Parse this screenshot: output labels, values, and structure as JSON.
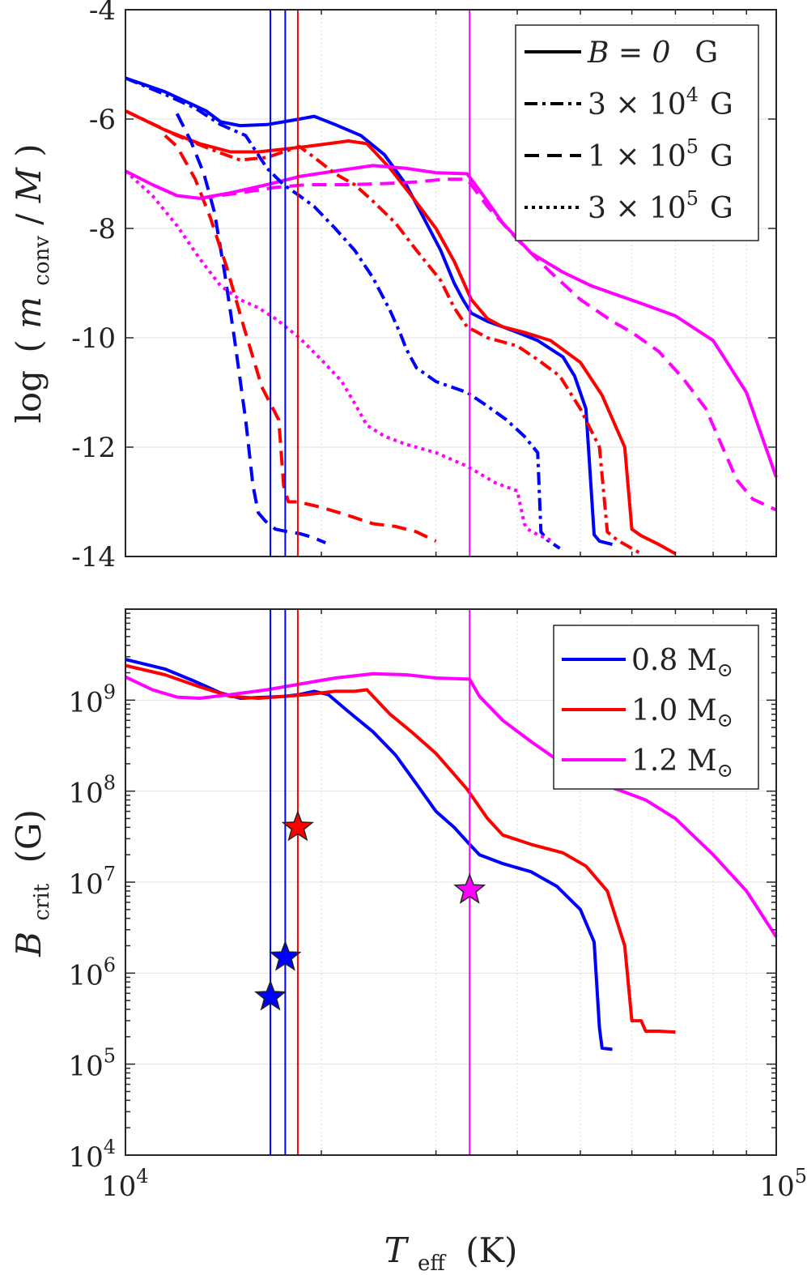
{
  "chart_data": [
    {
      "type": "line",
      "panel": "top",
      "xlabel": "T_eff (K)",
      "ylabel": "log (m_conv / M)",
      "xscale": "log",
      "xlim": [
        10000,
        100000
      ],
      "ylim": [
        -14,
        -4
      ],
      "yticks": [
        -14,
        -12,
        -10,
        -8,
        -6,
        -4
      ],
      "ytick_labels": [
        "-14",
        "-12",
        "-10",
        "-8",
        "-6",
        "-4"
      ],
      "grid": true,
      "legend_position": "top-right",
      "legend": [
        {
          "style": "solid",
          "label_main": "B = 0",
          "label_unit": "G"
        },
        {
          "style": "dashdot",
          "label_main": "3 × 10",
          "label_exp": "4",
          "label_unit": "G"
        },
        {
          "style": "dashed",
          "label_main": "1 × 10",
          "label_exp": "5",
          "label_unit": "G"
        },
        {
          "style": "dotted",
          "label_main": "3 × 10",
          "label_exp": "5",
          "label_unit": "G"
        }
      ],
      "series": [
        {
          "mass": "0.8",
          "field": "0",
          "style": "solid",
          "color": "#0000ff",
          "x": [
            10000,
            11500,
            12500,
            13300,
            14000,
            15000,
            16500,
            17500,
            18500,
            19500,
            21000,
            23000,
            25000,
            27000,
            29000,
            30500,
            32000,
            33000,
            34000,
            36000,
            38000,
            40000,
            43000,
            47000,
            49000,
            51000,
            52500,
            53500,
            56000
          ],
          "y": [
            -5.25,
            -5.5,
            -5.7,
            -5.85,
            -6.05,
            -6.12,
            -6.1,
            -6.05,
            -6.0,
            -5.95,
            -6.1,
            -6.3,
            -6.65,
            -7.2,
            -7.9,
            -8.4,
            -9.0,
            -9.3,
            -9.55,
            -9.7,
            -9.8,
            -9.9,
            -10.05,
            -10.35,
            -10.7,
            -11.3,
            -13.6,
            -13.72,
            -13.78
          ]
        },
        {
          "mass": "1.0",
          "field": "0",
          "style": "solid",
          "color": "#ff0000",
          "x": [
            10000,
            11500,
            13000,
            14500,
            16000,
            17500,
            19000,
            20500,
            22000,
            23500,
            25500,
            27500,
            30000,
            32000,
            34000,
            36000,
            38000,
            41000,
            45000,
            50000,
            54000,
            58500,
            60000,
            62000,
            66000,
            70000
          ],
          "y": [
            -5.85,
            -6.2,
            -6.45,
            -6.6,
            -6.6,
            -6.55,
            -6.5,
            -6.45,
            -6.4,
            -6.45,
            -6.9,
            -7.4,
            -8.0,
            -8.6,
            -9.3,
            -9.65,
            -9.8,
            -9.9,
            -10.05,
            -10.45,
            -11.05,
            -12.0,
            -13.5,
            -13.62,
            -13.78,
            -13.95
          ]
        },
        {
          "mass": "1.2",
          "field": "0",
          "style": "solid",
          "color": "#ff00ff",
          "x": [
            10000,
            11000,
            12000,
            13000,
            14500,
            16500,
            18500,
            21000,
            24000,
            27000,
            30000,
            33500,
            35000,
            38000,
            42000,
            47000,
            52000,
            58000,
            63000,
            70000,
            80000,
            90000,
            100000
          ],
          "y": [
            -6.95,
            -7.2,
            -7.4,
            -7.45,
            -7.35,
            -7.2,
            -7.05,
            -6.95,
            -6.85,
            -6.9,
            -6.98,
            -7.0,
            -7.3,
            -7.9,
            -8.45,
            -8.8,
            -9.05,
            -9.25,
            -9.4,
            -9.6,
            -10.05,
            -11.0,
            -12.55
          ]
        },
        {
          "mass": "0.8",
          "field": "3e4",
          "style": "dashdot",
          "color": "#0000ff",
          "x": [
            10000,
            11500,
            12800,
            14000,
            15300,
            16500,
            17500,
            18500,
            19500,
            21000,
            22500,
            24000,
            25500,
            26500,
            27000,
            28000,
            30000,
            33500,
            36000,
            38500,
            41000,
            43000,
            43500,
            44500,
            46500
          ],
          "y": [
            -5.25,
            -5.55,
            -5.8,
            -6.1,
            -6.3,
            -6.9,
            -7.2,
            -7.4,
            -7.6,
            -8.0,
            -8.4,
            -8.9,
            -9.5,
            -9.95,
            -10.2,
            -10.55,
            -10.8,
            -11.0,
            -11.25,
            -11.5,
            -11.8,
            -12.1,
            -13.55,
            -13.7,
            -13.85
          ]
        },
        {
          "mass": "1.0",
          "field": "3e4",
          "style": "dashdot",
          "color": "#ff0000",
          "x": [
            10000,
            12000,
            13500,
            15000,
            16500,
            17500,
            18500,
            19500,
            21000,
            22500,
            24000,
            26000,
            28000,
            30500,
            32000,
            33500,
            36000,
            40000,
            43000,
            46500,
            50000,
            53500,
            55000,
            57000,
            62000
          ],
          "y": [
            -5.85,
            -6.3,
            -6.55,
            -6.75,
            -6.7,
            -6.6,
            -6.5,
            -6.7,
            -7.0,
            -7.2,
            -7.5,
            -7.9,
            -8.4,
            -8.95,
            -9.45,
            -9.8,
            -10.0,
            -10.15,
            -10.4,
            -10.7,
            -11.3,
            -12.0,
            -13.55,
            -13.7,
            -13.95
          ]
        },
        {
          "mass": "0.8",
          "field": "1e5",
          "style": "dashed",
          "color": "#0000ff",
          "x": [
            12000,
            12600,
            13200,
            13700,
            14200,
            14700,
            15300,
            15700,
            16000,
            16400,
            17000,
            17800,
            18500,
            19400,
            20300
          ],
          "y": [
            -5.9,
            -6.4,
            -7.0,
            -7.7,
            -8.8,
            -10.0,
            -11.5,
            -12.7,
            -13.2,
            -13.35,
            -13.5,
            -13.55,
            -13.58,
            -13.65,
            -13.75
          ]
        },
        {
          "mass": "1.0",
          "field": "1e5",
          "style": "dashed",
          "color": "#ff0000",
          "x": [
            11500,
            12000,
            12800,
            13500,
            14300,
            15200,
            16200,
            17200,
            17500,
            17800,
            18400,
            20000,
            22000,
            24000,
            26000,
            28000,
            30000
          ],
          "y": [
            -6.3,
            -6.5,
            -7.1,
            -7.8,
            -8.7,
            -9.8,
            -10.9,
            -11.5,
            -12.7,
            -13.0,
            -13.0,
            -13.1,
            -13.25,
            -13.4,
            -13.45,
            -13.55,
            -13.72
          ]
        },
        {
          "mass": "1.2",
          "field": "1e5",
          "style": "dashed",
          "color": "#ff00ff",
          "x": [
            13000,
            15000,
            17000,
            19000,
            22000,
            25000,
            28000,
            31000,
            33500,
            36000,
            40000,
            45000,
            50000,
            56000,
            60000,
            66000,
            72000,
            78000,
            82000,
            87000,
            92000,
            100000
          ],
          "y": [
            -7.45,
            -7.35,
            -7.25,
            -7.2,
            -7.2,
            -7.18,
            -7.15,
            -7.1,
            -7.1,
            -7.6,
            -8.2,
            -8.8,
            -9.3,
            -9.7,
            -9.9,
            -10.25,
            -10.75,
            -11.3,
            -11.9,
            -12.6,
            -12.95,
            -13.15
          ]
        },
        {
          "mass": "1.2",
          "field": "3e5",
          "style": "dotted",
          "color": "#ff00ff",
          "x": [
            10000,
            11000,
            12000,
            13000,
            14000,
            15000,
            16000,
            17000,
            18500,
            20000,
            21500,
            22500,
            23500,
            25000,
            27000,
            30000,
            33500,
            37000,
            40000,
            41000,
            41500,
            43000,
            45000
          ],
          "y": [
            -6.95,
            -7.4,
            -7.95,
            -8.55,
            -9.05,
            -9.3,
            -9.45,
            -9.65,
            -10.0,
            -10.4,
            -10.8,
            -11.2,
            -11.6,
            -11.8,
            -11.95,
            -12.1,
            -12.35,
            -12.65,
            -12.8,
            -13.4,
            -13.5,
            -13.6,
            -13.7
          ]
        }
      ],
      "vertical_lines": [
        {
          "x": 16700,
          "color": "#0000ff"
        },
        {
          "x": 17600,
          "color": "#0000ff"
        },
        {
          "x": 18400,
          "color": "#ff0000"
        },
        {
          "x": 33800,
          "color": "#ff00ff"
        }
      ]
    },
    {
      "type": "line",
      "panel": "bottom",
      "xlabel": "T_eff (K)",
      "ylabel": "B_crit (G)",
      "xscale": "log",
      "yscale": "log",
      "xlim": [
        10000,
        100000
      ],
      "ylim": [
        10000,
        10000000000
      ],
      "xticks": [
        10000,
        100000
      ],
      "xtick_labels": [
        {
          "base": "10",
          "exp": "4"
        },
        {
          "base": "10",
          "exp": "5"
        }
      ],
      "yticks": [
        10000,
        100000,
        1000000,
        10000000,
        100000000,
        1000000000
      ],
      "ytick_labels": [
        {
          "base": "10",
          "exp": "4"
        },
        {
          "base": "10",
          "exp": "5"
        },
        {
          "base": "10",
          "exp": "6"
        },
        {
          "base": "10",
          "exp": "7"
        },
        {
          "base": "10",
          "exp": "8"
        },
        {
          "base": "10",
          "exp": "9"
        }
      ],
      "grid": true,
      "legend_position": "top-right",
      "legend": [
        {
          "label_main": "0.8 M",
          "label_sub": "⊙",
          "color": "#0000ff"
        },
        {
          "label_main": "1.0 M",
          "label_sub": "⊙",
          "color": "#ff0000"
        },
        {
          "label_main": "1.2 M",
          "label_sub": "⊙",
          "color": "#ff00ff"
        }
      ],
      "series": [
        {
          "mass": "0.8",
          "color": "#0000ff",
          "x": [
            10000,
            11500,
            12800,
            14000,
            15000,
            16500,
            17500,
            18500,
            19500,
            20500,
            22000,
            24000,
            26000,
            28000,
            30000,
            32000,
            33800,
            35000,
            38000,
            42000,
            46000,
            50000,
            52500,
            53500,
            54000,
            56000
          ],
          "y": [
            2800000000.0,
            2200000000.0,
            1600000000.0,
            1200000000.0,
            1050000000.0,
            1080000000.0,
            1100000000.0,
            1150000000.0,
            1250000000.0,
            1150000000.0,
            750000000.0,
            450000000.0,
            250000000.0,
            120000000.0,
            60000000.0,
            40000000.0,
            26000000.0,
            20000000.0,
            16000000.0,
            13000000.0,
            9000000.0,
            5000000.0,
            2200000.0,
            250000.0,
            150000.0,
            145000.0
          ]
        },
        {
          "mass": "1.0",
          "color": "#ff0000",
          "x": [
            10000,
            11500,
            13000,
            14500,
            16000,
            17500,
            19000,
            21000,
            22500,
            23500,
            25500,
            27500,
            30000,
            33500,
            36000,
            38000,
            42000,
            47000,
            51000,
            55000,
            58500,
            60000,
            62000,
            63000,
            66000,
            70000
          ],
          "y": [
            2400000000.0,
            1900000000.0,
            1400000000.0,
            1100000000.0,
            1050000000.0,
            1100000000.0,
            1150000000.0,
            1250000000.0,
            1250000000.0,
            1300000000.0,
            700000000.0,
            450000000.0,
            260000000.0,
            105000000.0,
            50000000.0,
            33000000.0,
            26000000.0,
            21000000.0,
            15000000.0,
            8000000.0,
            2000000.0,
            300000.0,
            300000.0,
            230000.0,
            230000.0,
            225000.0
          ]
        },
        {
          "mass": "1.2",
          "color": "#ff00ff",
          "x": [
            10000,
            11000,
            12000,
            13000,
            14500,
            16500,
            18500,
            21000,
            24000,
            27000,
            30000,
            33800,
            35000,
            38000,
            42000,
            47000,
            52000,
            58000,
            63000,
            70000,
            80000,
            90000,
            100000
          ],
          "y": [
            1800000000.0,
            1300000000.0,
            1080000000.0,
            1050000000.0,
            1150000000.0,
            1300000000.0,
            1500000000.0,
            1750000000.0,
            1950000000.0,
            1900000000.0,
            1750000000.0,
            1700000000.0,
            1100000000.0,
            600000000.0,
            350000000.0,
            200000000.0,
            130000000.0,
            100000000.0,
            80000000.0,
            50000000.0,
            20000000.0,
            8000000.0,
            2500000.0
          ]
        }
      ],
      "markers": [
        {
          "x": 16700,
          "y": 550000,
          "color": "#0000ff",
          "symbol": "star"
        },
        {
          "x": 17600,
          "y": 1500000,
          "color": "#0000ff",
          "symbol": "star"
        },
        {
          "x": 18400,
          "y": 40000000,
          "color": "#ff0000",
          "symbol": "star"
        },
        {
          "x": 33800,
          "y": 8200000,
          "color": "#ff00ff",
          "symbol": "star"
        }
      ],
      "vertical_lines": [
        {
          "x": 16700,
          "color": "#0000ff"
        },
        {
          "x": 17600,
          "color": "#0000ff"
        },
        {
          "x": 18400,
          "color": "#ff0000"
        },
        {
          "x": 33800,
          "color": "#ff00ff"
        }
      ]
    }
  ]
}
